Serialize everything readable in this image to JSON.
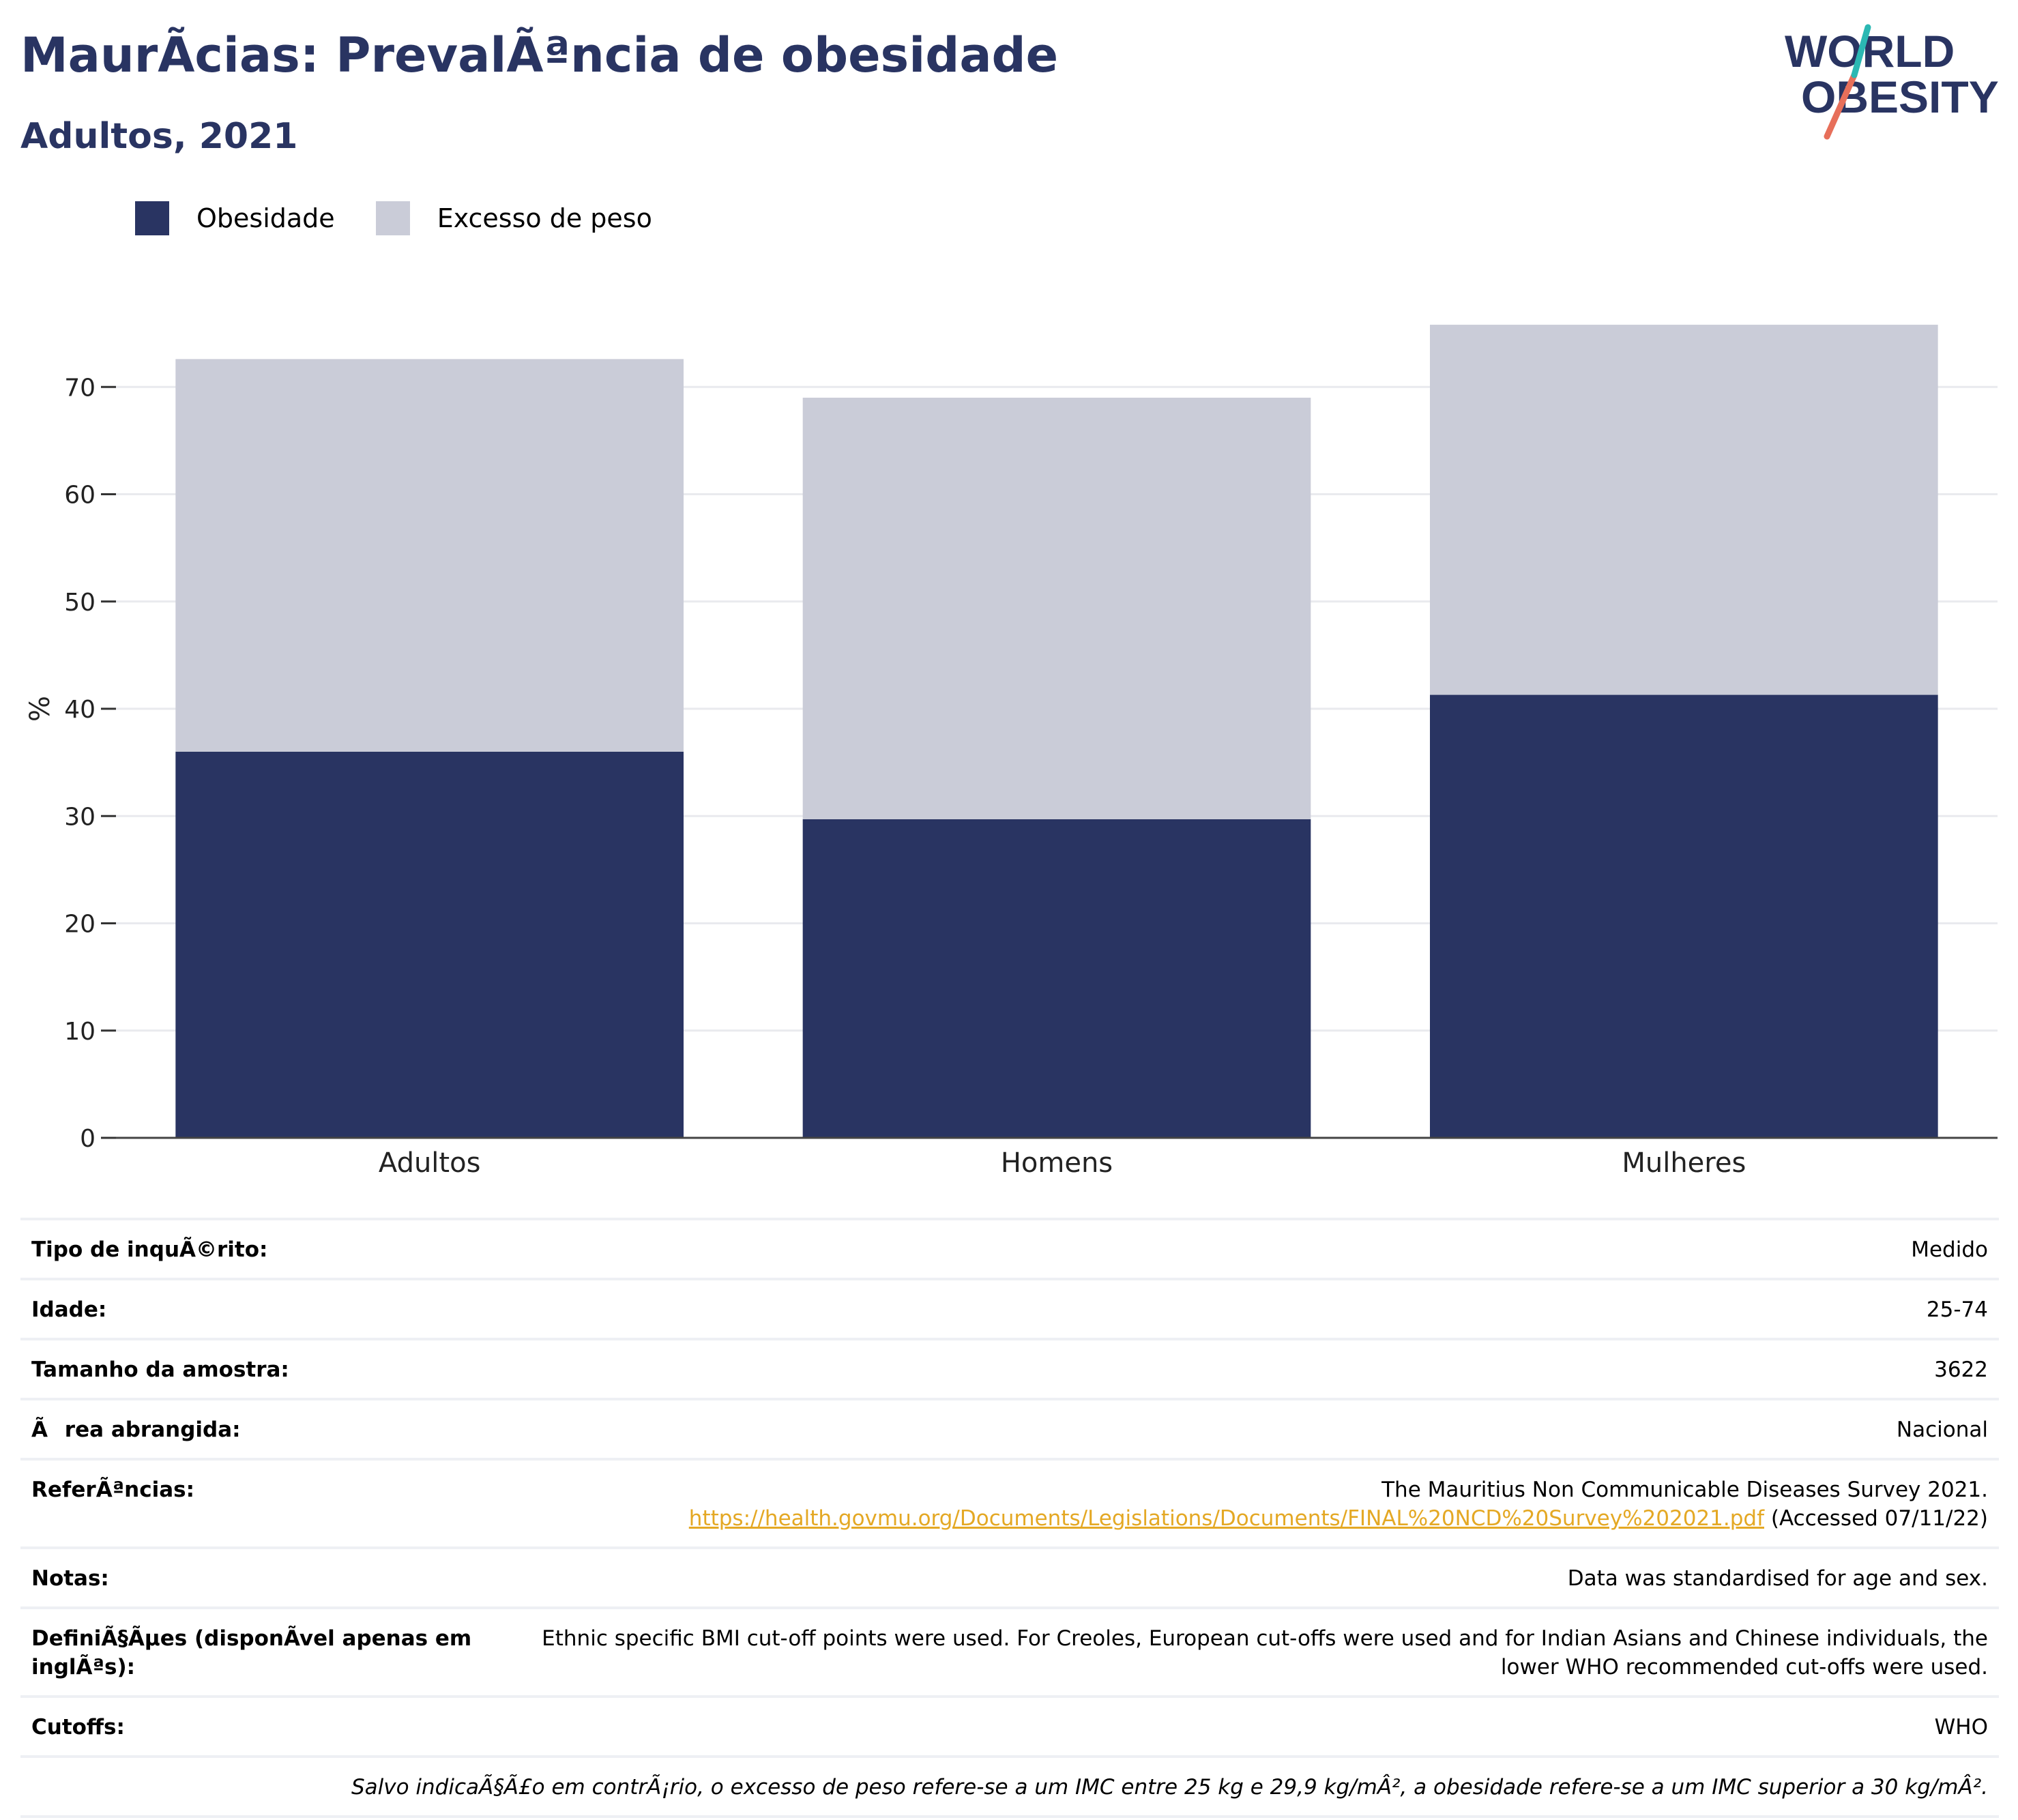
{
  "header": {
    "title": "MaurÃcias: PrevalÃªncia de obesidade",
    "subtitle": "Adultos, 2021",
    "logo_line1": "WORLD",
    "logo_line2": "OBESITY"
  },
  "legend": [
    {
      "label": "Obesidade",
      "color": "#293462"
    },
    {
      "label": "Excesso de peso",
      "color": "#caccd8"
    }
  ],
  "chart_data": {
    "type": "bar",
    "stacked": true,
    "categories": [
      "Adultos",
      "Homens",
      "Mulheres"
    ],
    "series": [
      {
        "name": "Obesidade",
        "values": [
          36.0,
          29.7,
          41.3
        ],
        "color": "#293462"
      },
      {
        "name": "Excesso de peso",
        "values": [
          36.6,
          39.3,
          34.5
        ],
        "color": "#caccd8"
      }
    ],
    "ylabel": "%",
    "ylim": [
      0,
      80
    ],
    "yticks": [
      0,
      10,
      20,
      30,
      40,
      50,
      60,
      70
    ],
    "grid": true,
    "legend_position": "top-left"
  },
  "info": {
    "rows": [
      {
        "label": "Tipo de inquÃ©rito:",
        "value": "Medido"
      },
      {
        "label": "Idade:",
        "value": "25-74"
      },
      {
        "label": "Tamanho da amostra:",
        "value": "3622"
      },
      {
        "label": "Ãrea abrangida:",
        "value": "Nacional"
      }
    ],
    "references": {
      "label": "ReferÃªncias:",
      "line1": "The Mauritius Non Communicable Diseases Survey 2021.",
      "link": "https://health.govmu.org/Documents/Legislations/Documents/FINAL%20NCD%20Survey%202021.pdf",
      "accessed": " (Accessed 07/11/22)"
    },
    "rows2": [
      {
        "label": "Notas:",
        "value": "Data was standardised for age and sex."
      },
      {
        "label": "DefiniÃ§Ãµes (disponÃvel apenas em inglÃªs):",
        "value": "Ethnic specific BMI cut-off points were used. For Creoles, European cut-offs were used and for Indian Asians and Chinese individuals, the lower WHO recommended cut-offs were used."
      },
      {
        "label": "Cutoffs:",
        "value": "WHO"
      }
    ],
    "footnote": "Salvo indicaÃ§Ã£o em contrÃ¡rio, o excesso de peso refere-se a um IMC entre 25 kg e 29,9 kg/mÂ², a obesidade refere-se a um IMC superior a 30 kg/mÂ²."
  }
}
